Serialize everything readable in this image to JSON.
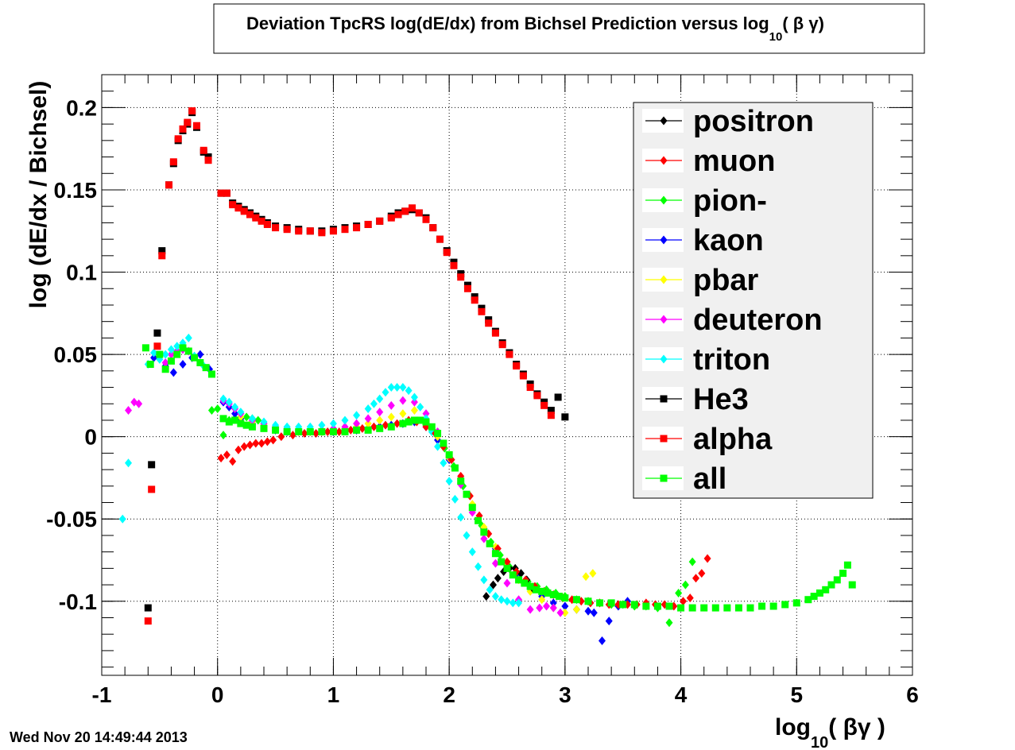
{
  "footer_timestamp": "Wed Nov 20 14:49:44 2013",
  "colors": {
    "positron": "#000000",
    "muon": "#ff0000",
    "pion-": "#00ff00",
    "kaon": "#0000ff",
    "pbar": "#ffff00",
    "deuteron": "#ff00ff",
    "triton": "#00ffff",
    "He3": "#000000",
    "alpha": "#ff0000",
    "all": "#00ff00"
  },
  "chart_data": {
    "type": "scatter",
    "title_main": "Deviation TpcRS log(dE/dx) from Bichsel Prediction versus log",
    "title_sub": "10",
    "title_tail": "(   β γ)",
    "xlabel_main": "log",
    "xlabel_sub": "10",
    "xlabel_tail": "( βγ  )",
    "ylabel": "log (dE/dx / Bichsel)",
    "xlim": [
      -1,
      6
    ],
    "ylim": [
      -0.145,
      0.22
    ],
    "x_ticks": [
      -1,
      0,
      1,
      2,
      3,
      4,
      5,
      6
    ],
    "x_tick_labels": [
      "-1",
      "0",
      "1",
      "2",
      "3",
      "4",
      "5",
      "6"
    ],
    "y_ticks": [
      -0.1,
      -0.05,
      0,
      0.05,
      0.1,
      0.15,
      0.2
    ],
    "y_tick_labels": [
      "-0.1",
      "-0.05",
      "0",
      "0.05",
      "0.1",
      "0.15",
      "0.2"
    ],
    "grid": true,
    "legend_position": "top-right",
    "series": [
      {
        "name": "positron",
        "marker": "diamond",
        "x": [
          2.32,
          2.38,
          2.42,
          2.47,
          2.52,
          2.57,
          2.62,
          2.67,
          2.72
        ],
        "y": [
          -0.097,
          -0.09,
          -0.086,
          -0.082,
          -0.08,
          -0.08,
          -0.083,
          -0.087,
          -0.092
        ]
      },
      {
        "name": "muon",
        "marker": "diamond",
        "x": [
          0.03,
          0.08,
          0.13,
          0.18,
          0.23,
          0.28,
          0.33,
          0.38,
          0.43,
          0.48,
          0.55,
          0.65,
          0.75,
          0.85,
          0.95,
          1.05,
          1.15,
          1.25,
          1.35,
          1.45,
          1.55,
          1.65,
          1.72,
          1.8,
          1.88,
          1.95,
          2.02,
          2.1,
          2.18,
          2.26,
          2.34,
          2.42,
          2.5,
          2.58,
          2.66,
          2.74,
          2.82,
          2.9,
          2.98,
          3.06,
          3.14,
          3.22,
          3.3,
          3.38,
          3.46,
          3.54,
          3.62,
          3.7,
          3.78,
          3.86,
          3.94,
          4.02,
          4.08,
          4.13,
          4.18,
          4.23
        ],
        "y": [
          -0.013,
          -0.011,
          -0.015,
          -0.008,
          -0.006,
          -0.005,
          -0.004,
          -0.004,
          -0.003,
          -0.002,
          0.0,
          0.001,
          0.002,
          0.002,
          0.003,
          0.003,
          0.004,
          0.005,
          0.006,
          0.007,
          0.008,
          0.01,
          0.009,
          0.006,
          0.002,
          -0.006,
          -0.014,
          -0.024,
          -0.036,
          -0.048,
          -0.059,
          -0.068,
          -0.076,
          -0.082,
          -0.087,
          -0.091,
          -0.094,
          -0.096,
          -0.098,
          -0.099,
          -0.1,
          -0.101,
          -0.101,
          -0.102,
          -0.102,
          -0.102,
          -0.102,
          -0.101,
          -0.102,
          -0.102,
          -0.103,
          -0.1,
          -0.098,
          -0.086,
          -0.083,
          -0.074
        ]
      },
      {
        "name": "pion-",
        "marker": "diamond",
        "x": [
          -0.05,
          0.0,
          0.05,
          0.1,
          0.15,
          0.2,
          0.25,
          0.3,
          0.35,
          0.4,
          0.5,
          0.6,
          0.7,
          0.8,
          0.9,
          1.0,
          1.1,
          1.2,
          1.3,
          1.4,
          1.5,
          1.6,
          1.7,
          1.8,
          1.88,
          1.96,
          2.04,
          2.12,
          2.2,
          2.28,
          2.36,
          2.44,
          2.52,
          2.6,
          2.68,
          2.76,
          2.84,
          2.92,
          3.0,
          3.1,
          3.2,
          3.3,
          3.4,
          3.5,
          3.6,
          3.7,
          3.8,
          3.9,
          3.98,
          4.04,
          4.1
        ],
        "y": [
          0.016,
          0.017,
          0.001,
          0.01,
          0.011,
          0.012,
          0.012,
          0.011,
          0.01,
          0.008,
          0.006,
          0.005,
          0.004,
          0.003,
          0.003,
          0.003,
          0.004,
          0.004,
          0.005,
          0.006,
          0.007,
          0.008,
          0.009,
          0.007,
          0.002,
          -0.007,
          -0.018,
          -0.03,
          -0.042,
          -0.054,
          -0.064,
          -0.072,
          -0.079,
          -0.084,
          -0.088,
          -0.091,
          -0.093,
          -0.095,
          -0.097,
          -0.099,
          -0.1,
          -0.101,
          -0.102,
          -0.102,
          -0.103,
          -0.103,
          -0.104,
          -0.113,
          -0.095,
          -0.09,
          -0.076
        ]
      },
      {
        "name": "kaon",
        "marker": "diamond",
        "x": [
          -0.55,
          -0.45,
          -0.38,
          -0.3,
          -0.22,
          -0.15,
          -0.07,
          0.05,
          0.1,
          0.15,
          0.2,
          0.3,
          0.4,
          0.5,
          0.6,
          0.7,
          0.8,
          0.9,
          1.0,
          1.1,
          1.2,
          1.3,
          1.4,
          1.5,
          1.6,
          1.7,
          1.8,
          1.9,
          2.0,
          2.1,
          2.2,
          2.3,
          2.4,
          2.5,
          2.6,
          2.7,
          2.8,
          2.9,
          3.0,
          3.1,
          3.2,
          3.25,
          3.32,
          3.38,
          3.46,
          3.54
        ],
        "y": [
          0.048,
          0.043,
          0.039,
          0.044,
          0.048,
          0.05,
          0.041,
          0.021,
          0.018,
          0.014,
          0.011,
          0.008,
          0.006,
          0.004,
          0.003,
          0.003,
          0.003,
          0.003,
          0.003,
          0.004,
          0.004,
          0.005,
          0.006,
          0.007,
          0.008,
          0.009,
          0.006,
          -0.002,
          -0.014,
          -0.028,
          -0.042,
          -0.056,
          -0.068,
          -0.078,
          -0.086,
          -0.092,
          -0.097,
          -0.101,
          -0.103,
          -0.105,
          -0.106,
          -0.107,
          -0.124,
          -0.112,
          -0.103,
          -0.1
        ]
      },
      {
        "name": "pbar",
        "marker": "diamond",
        "x": [
          0.2,
          0.3,
          0.4,
          0.5,
          0.6,
          0.7,
          0.8,
          0.9,
          1.0,
          1.1,
          1.2,
          1.3,
          1.4,
          1.5,
          1.6,
          1.7,
          1.8,
          1.9,
          2.0,
          2.1,
          2.2,
          2.3,
          2.4,
          2.5,
          2.6,
          2.7,
          2.8,
          2.9,
          3.0,
          3.1,
          3.18,
          3.24
        ],
        "y": [
          0.012,
          0.009,
          0.007,
          0.005,
          0.004,
          0.003,
          0.003,
          0.003,
          0.004,
          0.005,
          0.006,
          0.008,
          0.01,
          0.012,
          0.014,
          0.016,
          0.01,
          0.0,
          -0.013,
          -0.027,
          -0.041,
          -0.055,
          -0.067,
          -0.078,
          -0.087,
          -0.094,
          -0.099,
          -0.104,
          -0.107,
          -0.105,
          -0.085,
          -0.083
        ]
      },
      {
        "name": "deuteron",
        "marker": "diamond",
        "x": [
          -0.77,
          -0.72,
          -0.68,
          -0.45,
          -0.4,
          -0.35,
          -0.3,
          -0.25,
          0.05,
          0.1,
          0.15,
          0.2,
          0.3,
          0.4,
          0.5,
          0.6,
          0.7,
          0.8,
          0.9,
          1.0,
          1.1,
          1.2,
          1.3,
          1.4,
          1.5,
          1.6,
          1.7,
          1.8,
          1.9,
          2.0,
          2.1,
          2.2,
          2.3,
          2.4,
          2.5,
          2.6,
          2.7,
          2.78,
          2.84,
          2.9,
          2.96
        ],
        "y": [
          0.016,
          0.021,
          0.02,
          0.045,
          0.05,
          0.052,
          0.053,
          0.052,
          0.022,
          0.02,
          0.017,
          0.014,
          0.01,
          0.008,
          0.006,
          0.005,
          0.004,
          0.004,
          0.004,
          0.005,
          0.006,
          0.008,
          0.011,
          0.015,
          0.019,
          0.022,
          0.021,
          0.014,
          0.003,
          -0.012,
          -0.029,
          -0.046,
          -0.062,
          -0.077,
          -0.089,
          -0.099,
          -0.105,
          -0.104,
          -0.103,
          -0.104,
          -0.107
        ]
      },
      {
        "name": "triton",
        "marker": "diamond",
        "x": [
          -0.82,
          -0.77,
          -0.6,
          -0.55,
          -0.5,
          -0.45,
          -0.4,
          -0.35,
          -0.3,
          -0.25,
          -0.2,
          -0.12,
          0.05,
          0.1,
          0.15,
          0.2,
          0.3,
          0.4,
          0.5,
          0.6,
          0.7,
          0.8,
          0.9,
          1.0,
          1.1,
          1.2,
          1.3,
          1.35,
          1.4,
          1.45,
          1.5,
          1.55,
          1.6,
          1.65,
          1.7,
          1.75,
          1.8,
          1.85,
          1.9,
          1.95,
          2.0,
          2.05,
          2.1,
          2.15,
          2.2,
          2.25,
          2.3,
          2.35,
          2.4,
          2.45,
          2.5,
          2.55,
          2.6
        ],
        "y": [
          -0.05,
          -0.016,
          0.044,
          0.051,
          0.047,
          0.05,
          0.053,
          0.055,
          0.057,
          0.06,
          0.049,
          0.043,
          0.023,
          0.021,
          0.018,
          0.015,
          0.011,
          0.009,
          0.007,
          0.006,
          0.006,
          0.006,
          0.007,
          0.008,
          0.01,
          0.013,
          0.017,
          0.02,
          0.023,
          0.027,
          0.03,
          0.03,
          0.03,
          0.028,
          0.024,
          0.018,
          0.011,
          0.003,
          -0.006,
          -0.016,
          -0.027,
          -0.038,
          -0.049,
          -0.06,
          -0.07,
          -0.079,
          -0.087,
          -0.093,
          -0.097,
          -0.099,
          -0.1,
          -0.101,
          -0.101
        ]
      },
      {
        "name": "He3",
        "marker": "square",
        "x": [
          -0.6,
          -0.57,
          -0.52,
          -0.48,
          -0.42,
          -0.38,
          -0.34,
          -0.3,
          -0.26,
          -0.22,
          -0.18,
          -0.12,
          -0.08,
          0.03,
          0.08,
          0.13,
          0.18,
          0.23,
          0.28,
          0.33,
          0.38,
          0.43,
          0.5,
          0.6,
          0.7,
          0.8,
          0.9,
          1.0,
          1.1,
          1.2,
          1.3,
          1.4,
          1.5,
          1.56,
          1.62,
          1.68,
          1.74,
          1.8,
          1.86,
          1.92,
          1.98,
          2.04,
          2.1,
          2.16,
          2.22,
          2.28,
          2.34,
          2.4,
          2.46,
          2.52,
          2.58,
          2.64,
          2.7,
          2.76,
          2.82,
          2.88,
          2.94,
          3.0
        ],
        "y": [
          -0.104,
          -0.017,
          0.063,
          0.113,
          0.153,
          0.166,
          0.18,
          0.186,
          0.19,
          0.197,
          0.188,
          0.173,
          0.17,
          0.148,
          0.148,
          0.142,
          0.14,
          0.138,
          0.136,
          0.134,
          0.132,
          0.13,
          0.128,
          0.127,
          0.126,
          0.125,
          0.125,
          0.126,
          0.127,
          0.128,
          0.129,
          0.131,
          0.134,
          0.136,
          0.137,
          0.138,
          0.136,
          0.133,
          0.127,
          0.12,
          0.113,
          0.106,
          0.099,
          0.092,
          0.085,
          0.078,
          0.071,
          0.064,
          0.057,
          0.051,
          0.044,
          0.038,
          0.032,
          0.026,
          0.021,
          0.016,
          0.024,
          0.012
        ]
      },
      {
        "name": "alpha",
        "marker": "square",
        "x": [
          -0.6,
          -0.57,
          -0.52,
          -0.48,
          -0.42,
          -0.38,
          -0.34,
          -0.3,
          -0.26,
          -0.22,
          -0.18,
          -0.12,
          -0.08,
          0.03,
          0.08,
          0.13,
          0.18,
          0.23,
          0.28,
          0.33,
          0.38,
          0.43,
          0.5,
          0.6,
          0.7,
          0.8,
          0.9,
          1.0,
          1.1,
          1.2,
          1.3,
          1.4,
          1.5,
          1.56,
          1.62,
          1.68,
          1.74,
          1.8,
          1.86,
          1.92,
          1.98,
          2.04,
          2.1,
          2.16,
          2.22,
          2.28,
          2.34,
          2.4,
          2.46,
          2.52,
          2.58,
          2.64,
          2.7,
          2.76,
          2.82,
          2.88
        ],
        "y": [
          -0.112,
          -0.032,
          0.055,
          0.11,
          0.153,
          0.167,
          0.181,
          0.187,
          0.191,
          0.198,
          0.189,
          0.174,
          0.168,
          0.148,
          0.148,
          0.141,
          0.139,
          0.137,
          0.135,
          0.133,
          0.131,
          0.129,
          0.127,
          0.126,
          0.125,
          0.125,
          0.124,
          0.125,
          0.126,
          0.127,
          0.129,
          0.131,
          0.133,
          0.135,
          0.137,
          0.139,
          0.136,
          0.132,
          0.127,
          0.12,
          0.112,
          0.104,
          0.097,
          0.09,
          0.083,
          0.076,
          0.069,
          0.063,
          0.056,
          0.05,
          0.043,
          0.037,
          0.03,
          0.025,
          0.019,
          0.013
        ]
      },
      {
        "name": "all",
        "marker": "square",
        "x": [
          -0.62,
          -0.58,
          -0.5,
          -0.45,
          -0.4,
          -0.35,
          -0.3,
          -0.25,
          -0.2,
          -0.15,
          -0.1,
          -0.05,
          0.05,
          0.1,
          0.15,
          0.2,
          0.25,
          0.3,
          0.4,
          0.5,
          0.6,
          0.7,
          0.8,
          0.9,
          1.0,
          1.1,
          1.2,
          1.3,
          1.4,
          1.5,
          1.6,
          1.65,
          1.7,
          1.75,
          1.8,
          1.85,
          1.9,
          1.95,
          2.0,
          2.05,
          2.1,
          2.15,
          2.2,
          2.25,
          2.3,
          2.35,
          2.4,
          2.45,
          2.5,
          2.55,
          2.6,
          2.65,
          2.7,
          2.75,
          2.8,
          2.85,
          2.9,
          2.95,
          3.0,
          3.1,
          3.2,
          3.3,
          3.4,
          3.5,
          3.6,
          3.7,
          3.8,
          3.9,
          4.0,
          4.1,
          4.2,
          4.3,
          4.4,
          4.5,
          4.6,
          4.7,
          4.8,
          4.9,
          5.0,
          5.1,
          5.15,
          5.2,
          5.25,
          5.3,
          5.35,
          5.4,
          5.44,
          5.48
        ],
        "y": [
          0.054,
          0.044,
          0.05,
          0.041,
          0.046,
          0.05,
          0.054,
          0.052,
          0.048,
          0.045,
          0.042,
          0.038,
          0.011,
          0.009,
          0.01,
          0.008,
          0.007,
          0.006,
          0.005,
          0.004,
          0.003,
          0.003,
          0.003,
          0.003,
          0.003,
          0.003,
          0.004,
          0.004,
          0.005,
          0.006,
          0.008,
          0.009,
          0.01,
          0.01,
          0.009,
          0.006,
          0.002,
          -0.004,
          -0.011,
          -0.019,
          -0.027,
          -0.035,
          -0.043,
          -0.051,
          -0.058,
          -0.065,
          -0.071,
          -0.076,
          -0.08,
          -0.084,
          -0.087,
          -0.089,
          -0.091,
          -0.093,
          -0.094,
          -0.095,
          -0.096,
          -0.097,
          -0.098,
          -0.099,
          -0.1,
          -0.101,
          -0.101,
          -0.102,
          -0.102,
          -0.103,
          -0.103,
          -0.103,
          -0.104,
          -0.104,
          -0.104,
          -0.104,
          -0.104,
          -0.104,
          -0.104,
          -0.103,
          -0.103,
          -0.102,
          -0.101,
          -0.099,
          -0.097,
          -0.095,
          -0.093,
          -0.09,
          -0.087,
          -0.083,
          -0.078,
          -0.09
        ]
      }
    ]
  }
}
